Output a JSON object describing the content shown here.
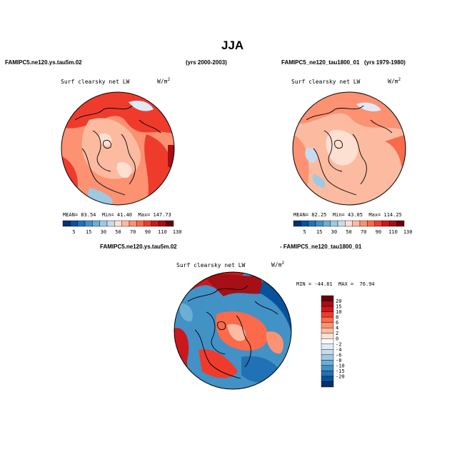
{
  "title": "JJA",
  "top_left": {
    "case": "FAMIPC5.ne120.ys.tau5m.02",
    "years": "(yrs 2000-2003)",
    "variable": "Surf clearsky net LW",
    "units": "W/m",
    "units_sup": "2",
    "stats": {
      "mean_label": "MEAN=",
      "mean": "83.54",
      "min_label": "Min=",
      "min": "41.40",
      "max_label": "Max=",
      "max": "147.73"
    }
  },
  "top_right": {
    "case": "FAMIPC5_ne120_tau1800_01",
    "years": "(yrs 1979-1980)",
    "variable": "Surf clearsky net LW",
    "units": "W/m",
    "units_sup": "2",
    "stats": {
      "mean_label": "MEAN=",
      "mean": "82.25",
      "min_label": "Min=",
      "min": "43.05",
      "max_label": "Max=",
      "max": "114.25"
    }
  },
  "diff": {
    "case_a": "FAMIPC5.ne120.ys.tau5m.02",
    "case_b": "- FAMIPC5_ne120_tau1800_01",
    "variable": "Surf clearsky net LW",
    "units": "W/m",
    "units_sup": "2",
    "min_label": "MIN =",
    "min": "-44.81",
    "max_label": "MAX =",
    "max": "76.94"
  },
  "abs_colorbar": {
    "colors": [
      "#08306b",
      "#08519c",
      "#2171b5",
      "#4292c6",
      "#6baed6",
      "#9ecae1",
      "#c6dbef",
      "#fee0d2",
      "#fcbba1",
      "#fc9272",
      "#fb6a4a",
      "#ef3b2c",
      "#cb181d",
      "#a50f15",
      "#67000d"
    ],
    "labels": [
      "5",
      "15",
      "30",
      "50",
      "70",
      "90",
      "110",
      "130"
    ]
  },
  "diff_colorbar": {
    "colors": [
      "#67000d",
      "#a50f15",
      "#cb181d",
      "#ef3b2c",
      "#fb6a4a",
      "#fc9272",
      "#fcbba1",
      "#fee0d2",
      "#ffffff",
      "#deebf7",
      "#c6dbef",
      "#9ecae1",
      "#6baed6",
      "#4292c6",
      "#2171b5",
      "#08519c",
      "#08306b"
    ],
    "labels": [
      "20",
      "15",
      "10",
      "8",
      "6",
      "4",
      "2",
      "0",
      "-2",
      "-4",
      "-6",
      "-8",
      "-10",
      "-15",
      "-20"
    ]
  }
}
